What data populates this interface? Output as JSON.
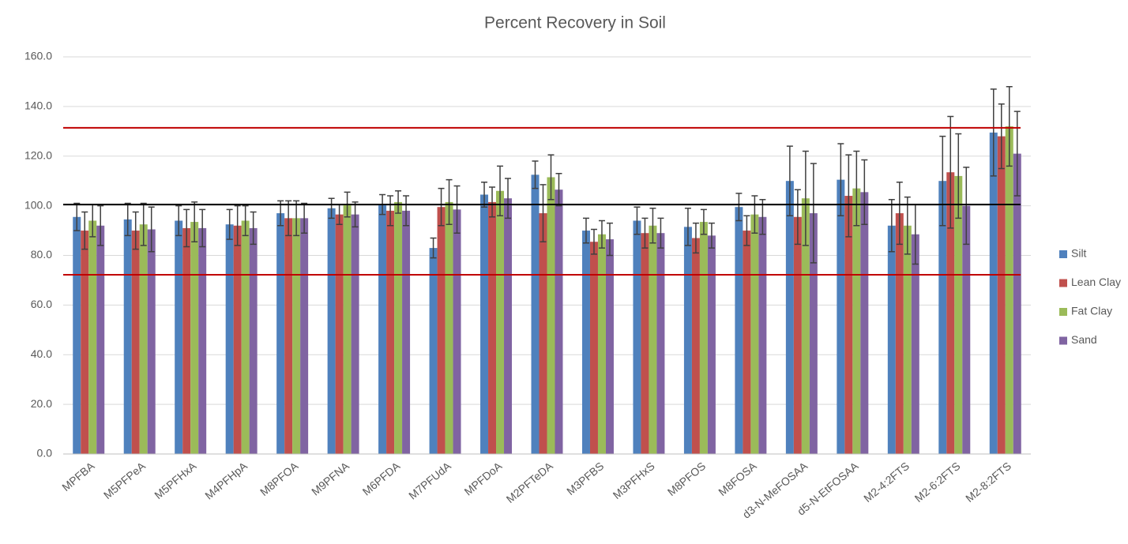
{
  "chart_data": {
    "type": "bar",
    "title": "Percent Recovery in Soil",
    "categories": [
      "MPFBA",
      "M5PFPeA",
      "M5PFHxA",
      "M4PFHpA",
      "M8PFOA",
      "M9PFNA",
      "M6PFDA",
      "M7PFUdA",
      "MPFDoA",
      "M2PFTeDA",
      "M3PFBS",
      "M3PFHxS",
      "M8PFOS",
      "M8FOSA",
      "d3-N-MeFOSAA",
      "d5-N-EtFOSAA",
      "M2-4:2FTS",
      "M2-6:2FTS",
      "M2-8:2FTS"
    ],
    "series": [
      {
        "name": "Silt",
        "color": "#4f81bd",
        "values": [
          95.5,
          94.5,
          94,
          92.5,
          97,
          99,
          100.5,
          83,
          104.5,
          112.5,
          90,
          94,
          91.5,
          99.5,
          110,
          110.5,
          92,
          110,
          129.5
        ],
        "errors": [
          5.5,
          6.5,
          6,
          6,
          5,
          4,
          4,
          4,
          5,
          5.5,
          5,
          5.5,
          7.5,
          5.5,
          14,
          14.5,
          10.5,
          18,
          17.5
        ]
      },
      {
        "name": "Lean Clay",
        "color": "#c0504d",
        "values": [
          90,
          90,
          91,
          92,
          95,
          96.5,
          98,
          99.5,
          101.5,
          97,
          85.5,
          89,
          87,
          90,
          95.5,
          104,
          97,
          113.5,
          128
        ],
        "errors": [
          7.5,
          7.5,
          7.5,
          8,
          7,
          4,
          6,
          7.5,
          6,
          11.5,
          5,
          6,
          6,
          6,
          11,
          16.5,
          12.5,
          22.5,
          13
        ]
      },
      {
        "name": "Fat Clay",
        "color": "#9bbb59",
        "values": [
          94,
          92.5,
          93.5,
          94,
          95,
          100.5,
          101.5,
          101.5,
          106,
          111.5,
          88.5,
          92,
          93.5,
          96.5,
          103,
          107,
          92,
          112,
          132
        ],
        "errors": [
          6.5,
          8.5,
          8,
          6,
          7,
          5,
          4.5,
          9,
          10,
          9,
          5.5,
          7,
          5,
          7.5,
          19,
          15,
          11.5,
          17,
          16
        ]
      },
      {
        "name": "Sand",
        "color": "#8064a2",
        "values": [
          92,
          90.5,
          91,
          91,
          95,
          96.5,
          98,
          98.5,
          103,
          106.5,
          86.5,
          89,
          88,
          95.5,
          97,
          105.5,
          88.5,
          100,
          121
        ],
        "errors": [
          8,
          9,
          7.5,
          6.5,
          6,
          5,
          6,
          9.5,
          8,
          6.5,
          6.5,
          6,
          5,
          7,
          20,
          13,
          12,
          15.5,
          17
        ]
      }
    ],
    "reference_lines": [
      {
        "value": 131.4,
        "color": "#c00000"
      },
      {
        "value": 100.5,
        "color": "#000000"
      },
      {
        "value": 72.2,
        "color": "#c00000"
      }
    ],
    "ylim": [
      0,
      160
    ],
    "yticks": [
      {
        "value": 0,
        "label": "0.0"
      },
      {
        "value": 20,
        "label": "20.0"
      },
      {
        "value": 40,
        "label": "40.0"
      },
      {
        "value": 60,
        "label": "60.0"
      },
      {
        "value": 80,
        "label": "80.0"
      },
      {
        "value": 100,
        "label": "100.0"
      },
      {
        "value": 120,
        "label": "120.0"
      },
      {
        "value": 140,
        "label": "140.0"
      },
      {
        "value": 160,
        "label": "160.0"
      }
    ],
    "grid": true,
    "legend": "right"
  }
}
